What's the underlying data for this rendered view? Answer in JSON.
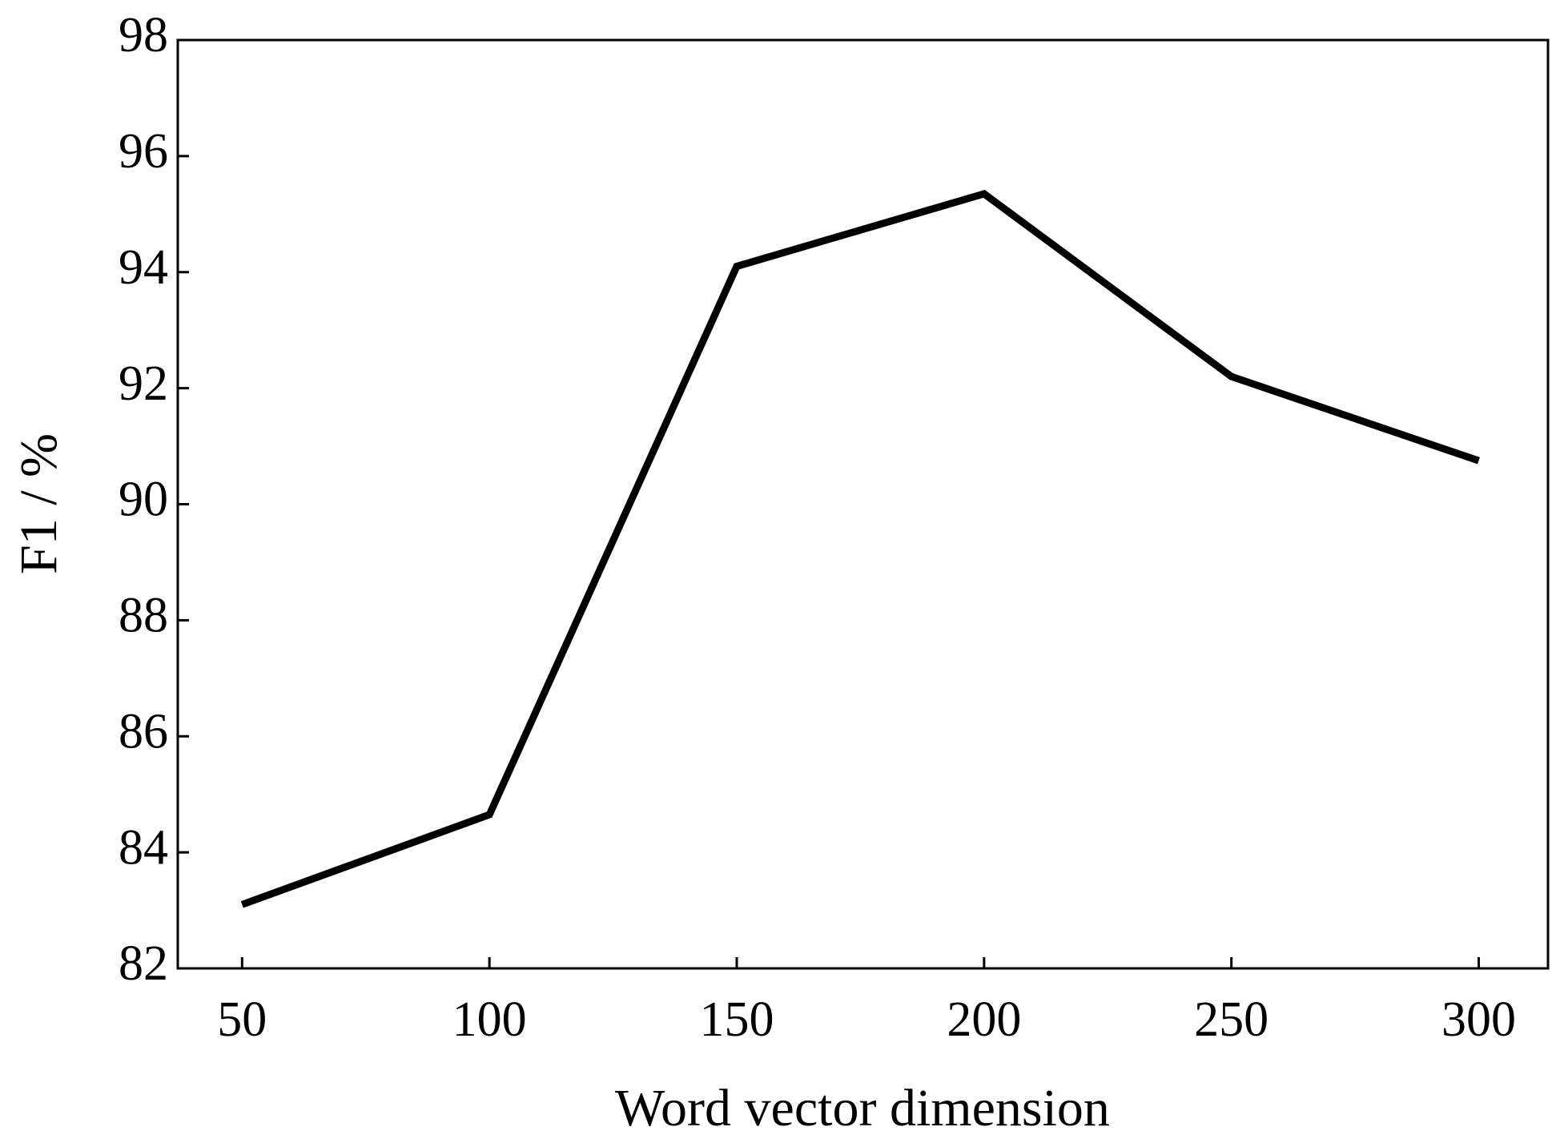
{
  "chart_data": {
    "type": "line",
    "x": [
      50,
      100,
      150,
      200,
      250,
      300
    ],
    "series": [
      {
        "color": "#000000",
        "values": [
          83.1,
          84.65,
          94.1,
          95.35,
          92.2,
          90.75
        ]
      }
    ],
    "xlabel": "Word vector dimension",
    "ylabel": "F1 / %",
    "xlim": [
      37,
      314
    ],
    "xticks": [
      50,
      100,
      150,
      200,
      250,
      300
    ],
    "ylim": [
      82,
      98
    ],
    "yticks": [
      82,
      84,
      86,
      88,
      90,
      92,
      94,
      96,
      98
    ],
    "grid": false
  }
}
